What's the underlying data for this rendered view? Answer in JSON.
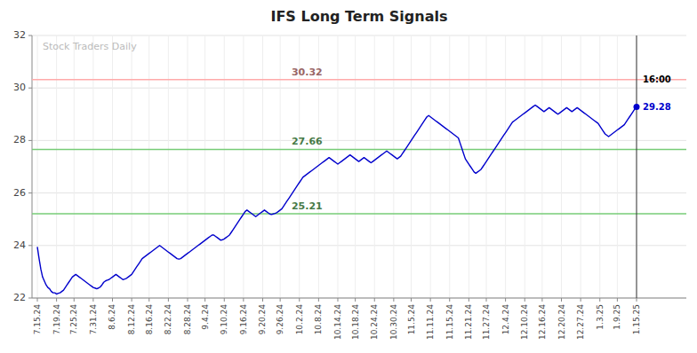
{
  "chart_data": {
    "type": "line",
    "title": "IFS Long Term Signals",
    "color": "#0000cc",
    "grid": true,
    "ylim": [
      22,
      32
    ],
    "yticks": [
      22,
      24,
      26,
      28,
      30,
      32
    ],
    "reference_lines": [
      {
        "value": 30.32,
        "label": "30.32",
        "color": "#ffaaaa"
      },
      {
        "value": 27.66,
        "label": "27.66",
        "color": "#77cc77"
      },
      {
        "value": 25.21,
        "label": "25.21",
        "color": "#77cc77"
      }
    ],
    "annotations": [
      {
        "text": "Stock Traders Daily"
      },
      {
        "text": "16:00"
      },
      {
        "text": "29.28",
        "value": 29.28
      }
    ],
    "categories": [
      "7.15.24",
      null,
      null,
      null,
      null,
      null,
      null,
      null,
      null,
      null,
      null,
      "7.19.24",
      null,
      null,
      null,
      null,
      null,
      null,
      null,
      null,
      null,
      "7.25.24",
      null,
      null,
      null,
      null,
      null,
      null,
      null,
      null,
      null,
      null,
      "7.31.24",
      null,
      null,
      null,
      null,
      null,
      null,
      null,
      null,
      null,
      null,
      "8.6.24",
      null,
      null,
      null,
      null,
      null,
      null,
      null,
      null,
      null,
      null,
      "8.12.24",
      null,
      null,
      null,
      null,
      null,
      null,
      null,
      null,
      null,
      "8.16.24",
      null,
      null,
      null,
      null,
      null,
      null,
      null,
      null,
      null,
      null,
      "8.22.24",
      null,
      null,
      null,
      null,
      null,
      null,
      null,
      null,
      null,
      null,
      "8.28.24",
      null,
      null,
      null,
      null,
      null,
      null,
      null,
      null,
      null,
      "9.4.24",
      null,
      null,
      null,
      null,
      null,
      null,
      null,
      null,
      null,
      null,
      "9.10.24",
      null,
      null,
      null,
      null,
      null,
      null,
      null,
      null,
      null,
      null,
      "9.16.24",
      null,
      null,
      null,
      null,
      null,
      null,
      null,
      null,
      null,
      null,
      "9.20.24",
      null,
      null,
      null,
      null,
      null,
      null,
      null,
      null,
      null,
      "9.26.24",
      null,
      null,
      null,
      null,
      null,
      null,
      null,
      null,
      null,
      null,
      "10.2.24",
      null,
      null,
      null,
      null,
      null,
      null,
      null,
      null,
      null,
      null,
      "10.8.24",
      null,
      null,
      null,
      null,
      null,
      null,
      null,
      null,
      null,
      null,
      "10.14.24",
      null,
      null,
      null,
      null,
      null,
      null,
      null,
      null,
      null,
      "10.18.24",
      null,
      null,
      null,
      null,
      null,
      null,
      null,
      null,
      null,
      null,
      "10.24.24",
      null,
      null,
      null,
      null,
      null,
      null,
      null,
      null,
      null,
      null,
      "10.30.24",
      null,
      null,
      null,
      null,
      null,
      null,
      null,
      null,
      null,
      "11.5.24",
      null,
      null,
      null,
      null,
      null,
      null,
      null,
      null,
      null,
      null,
      "11.11.24",
      null,
      null,
      null,
      null,
      null,
      null,
      null,
      null,
      null,
      null,
      "11.15.24",
      null,
      null,
      null,
      null,
      null,
      null,
      null,
      null,
      null,
      null,
      "11.21.24",
      null,
      null,
      null,
      null,
      null,
      null,
      null,
      null,
      null,
      "11.27.24",
      null,
      null,
      null,
      null,
      null,
      null,
      null,
      null,
      null,
      null,
      "12.4.24",
      null,
      null,
      null,
      null,
      null,
      null,
      null,
      null,
      null,
      null,
      "12.10.24",
      null,
      null,
      null,
      null,
      null,
      null,
      null,
      null,
      null,
      "12.16.24",
      null,
      null,
      null,
      null,
      null,
      null,
      null,
      null,
      null,
      null,
      "12.20.24",
      null,
      null,
      null,
      null,
      null,
      null,
      null,
      null,
      null,
      null,
      "12.27.24",
      null,
      null,
      null,
      null,
      null,
      null,
      null,
      null,
      null,
      null,
      "1.3.25",
      null,
      null,
      null,
      null,
      null,
      null,
      null,
      null,
      null,
      "1.9.25",
      null,
      null,
      null,
      null,
      null,
      null,
      null,
      null,
      null,
      null,
      "1.15.25"
    ],
    "values": [
      23.95,
      23.5,
      23.1,
      22.8,
      22.65,
      22.5,
      22.4,
      22.35,
      22.25,
      22.2,
      22.2,
      22.15,
      22.18,
      22.2,
      22.25,
      22.3,
      22.4,
      22.5,
      22.6,
      22.7,
      22.8,
      22.85,
      22.9,
      22.85,
      22.8,
      22.75,
      22.7,
      22.65,
      22.6,
      22.55,
      22.5,
      22.45,
      22.4,
      22.38,
      22.35,
      22.38,
      22.42,
      22.5,
      22.6,
      22.65,
      22.68,
      22.7,
      22.75,
      22.8,
      22.85,
      22.9,
      22.85,
      22.8,
      22.75,
      22.7,
      22.72,
      22.75,
      22.8,
      22.85,
      22.9,
      23.0,
      23.1,
      23.2,
      23.3,
      23.4,
      23.5,
      23.55,
      23.6,
      23.65,
      23.7,
      23.75,
      23.8,
      23.85,
      23.9,
      23.95,
      24.0,
      23.95,
      23.9,
      23.85,
      23.8,
      23.75,
      23.7,
      23.65,
      23.6,
      23.55,
      23.5,
      23.48,
      23.5,
      23.55,
      23.6,
      23.65,
      23.7,
      23.75,
      23.8,
      23.85,
      23.9,
      23.95,
      24.0,
      24.05,
      24.1,
      24.15,
      24.2,
      24.25,
      24.3,
      24.35,
      24.4,
      24.4,
      24.35,
      24.3,
      24.25,
      24.2,
      24.22,
      24.25,
      24.3,
      24.35,
      24.4,
      24.5,
      24.6,
      24.7,
      24.8,
      24.9,
      25.0,
      25.1,
      25.2,
      25.3,
      25.35,
      25.3,
      25.25,
      25.2,
      25.15,
      25.1,
      25.15,
      25.2,
      25.25,
      25.3,
      25.35,
      25.3,
      25.25,
      25.2,
      25.18,
      25.2,
      25.22,
      25.25,
      25.3,
      25.35,
      25.4,
      25.5,
      25.6,
      25.7,
      25.8,
      25.9,
      26.0,
      26.1,
      26.2,
      26.3,
      26.4,
      26.5,
      26.6,
      26.65,
      26.7,
      26.75,
      26.8,
      26.85,
      26.9,
      26.95,
      27.0,
      27.05,
      27.1,
      27.15,
      27.2,
      27.25,
      27.3,
      27.35,
      27.3,
      27.25,
      27.2,
      27.15,
      27.1,
      27.15,
      27.2,
      27.25,
      27.3,
      27.35,
      27.4,
      27.45,
      27.4,
      27.35,
      27.3,
      27.25,
      27.2,
      27.25,
      27.3,
      27.35,
      27.3,
      27.25,
      27.2,
      27.15,
      27.2,
      27.25,
      27.3,
      27.35,
      27.4,
      27.45,
      27.5,
      27.55,
      27.6,
      27.55,
      27.5,
      27.45,
      27.4,
      27.35,
      27.3,
      27.35,
      27.4,
      27.5,
      27.6,
      27.7,
      27.8,
      27.9,
      28.0,
      28.1,
      28.2,
      28.3,
      28.4,
      28.5,
      28.6,
      28.7,
      28.8,
      28.9,
      28.95,
      28.9,
      28.85,
      28.8,
      28.75,
      28.7,
      28.65,
      28.6,
      28.55,
      28.5,
      28.45,
      28.4,
      28.35,
      28.3,
      28.25,
      28.2,
      28.15,
      28.1,
      27.9,
      27.7,
      27.5,
      27.3,
      27.2,
      27.1,
      27.0,
      26.9,
      26.8,
      26.75,
      26.8,
      26.85,
      26.9,
      27.0,
      27.1,
      27.2,
      27.3,
      27.4,
      27.5,
      27.6,
      27.7,
      27.8,
      27.9,
      28.0,
      28.1,
      28.2,
      28.3,
      28.4,
      28.5,
      28.6,
      28.7,
      28.75,
      28.8,
      28.85,
      28.9,
      28.95,
      29.0,
      29.05,
      29.1,
      29.15,
      29.2,
      29.25,
      29.3,
      29.35,
      29.3,
      29.25,
      29.2,
      29.15,
      29.1,
      29.15,
      29.2,
      29.25,
      29.2,
      29.15,
      29.1,
      29.05,
      29.0,
      29.05,
      29.1,
      29.15,
      29.2,
      29.25,
      29.2,
      29.15,
      29.1,
      29.15,
      29.2,
      29.25,
      29.2,
      29.15,
      29.1,
      29.05,
      29.0,
      28.95,
      28.9,
      28.85,
      28.8,
      28.75,
      28.7,
      28.65,
      28.55,
      28.45,
      28.35,
      28.25,
      28.2,
      28.15,
      28.2,
      28.25,
      28.3,
      28.35,
      28.4,
      28.45,
      28.5,
      28.55,
      28.6,
      28.7,
      28.8,
      28.9,
      29.0,
      29.1,
      29.2,
      29.28
    ]
  }
}
